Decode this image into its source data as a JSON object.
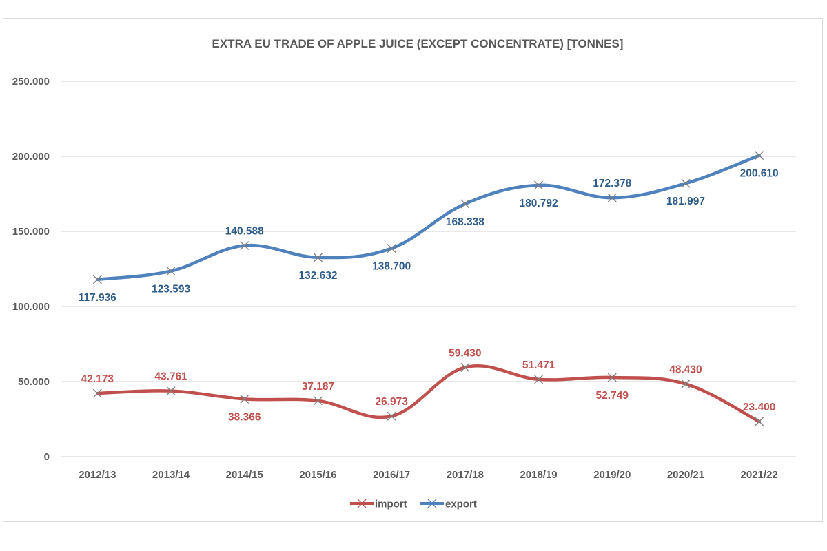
{
  "chart_data": {
    "type": "line",
    "title": "EXTRA EU TRADE OF APPLE JUICE (EXCEPT CONCENTRATE) [TONNES]",
    "xlabel": "",
    "ylabel": "",
    "categories": [
      "2012/13",
      "2013/14",
      "2014/15",
      "2015/16",
      "2016/17",
      "2017/18",
      "2018/19",
      "2019/20",
      "2020/21",
      "2021/22"
    ],
    "ylim": [
      0,
      250000
    ],
    "yticks": [
      0,
      50000,
      100000,
      150000,
      200000,
      250000
    ],
    "ytick_labels": [
      "0",
      "50.000",
      "100.000",
      "150.000",
      "200.000",
      "250.000"
    ],
    "grid": true,
    "legend_position": "bottom",
    "smooth": true,
    "series": [
      {
        "name": "import",
        "color": "#c0504d",
        "marker": "x",
        "values": [
          42173,
          43761,
          38366,
          37187,
          26973,
          59430,
          51471,
          52749,
          48430,
          23400
        ],
        "labels": [
          "42.173",
          "43.761",
          "38.366",
          "37.187",
          "26.973",
          "59.430",
          "51.471",
          "52.749",
          "48.430",
          "23.400"
        ],
        "label_positions": [
          "above",
          "above",
          "below",
          "above",
          "above",
          "above",
          "above",
          "below",
          "above",
          "above"
        ]
      },
      {
        "name": "export",
        "color": "#4f81bd",
        "label_color": "#2e5c8a",
        "marker": "x",
        "values": [
          117936,
          123593,
          140588,
          132632,
          138700,
          168338,
          180792,
          172378,
          181997,
          200610
        ],
        "labels": [
          "117.936",
          "123.593",
          "140.588",
          "132.632",
          "138.700",
          "168.338",
          "180.792",
          "172.378",
          "181.997",
          "200.610"
        ],
        "label_positions": [
          "below",
          "below",
          "above",
          "below",
          "below",
          "below",
          "below",
          "above",
          "below",
          "below"
        ]
      }
    ]
  }
}
